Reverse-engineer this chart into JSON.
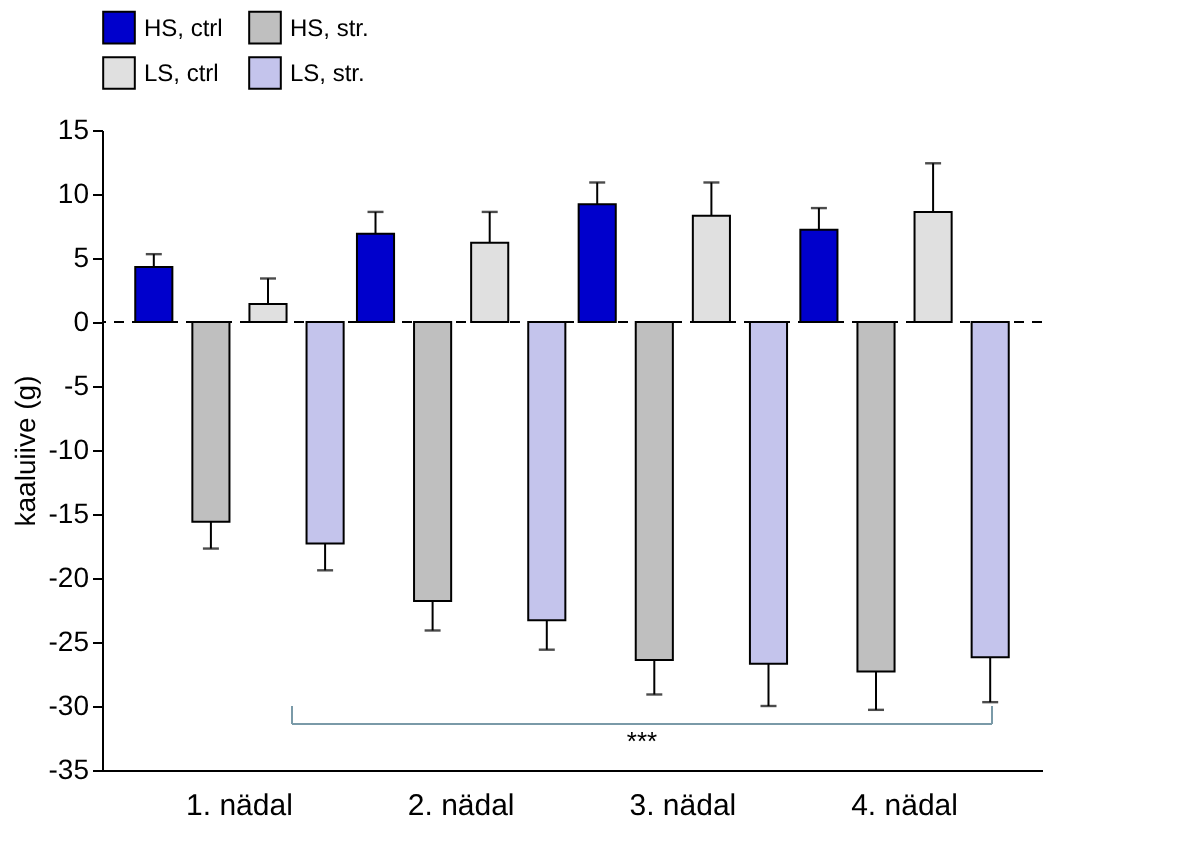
{
  "chart_data": {
    "type": "bar",
    "ylabel": "kaaluiive (g)",
    "categories": [
      "1. nädal",
      "2. nädal",
      "3. nädal",
      "4. nädal"
    ],
    "series": [
      {
        "name": "HS, ctrl",
        "color": "#0000cc",
        "values": [
          4.3,
          6.9,
          9.2,
          7.2
        ],
        "errors": [
          [
            4.3,
            5.3
          ],
          [
            6.9,
            8.6
          ],
          [
            9.2,
            10.9
          ],
          [
            7.2,
            8.9
          ]
        ]
      },
      {
        "name": "HS, str.",
        "color": "#bfbfbf",
        "values": [
          -15.6,
          -21.8,
          -26.4,
          -27.3
        ],
        "errors": [
          [
            -17.7,
            -15.6
          ],
          [
            -24.1,
            -21.8
          ],
          [
            -29.1,
            -26.4
          ],
          [
            -30.3,
            -27.3
          ]
        ]
      },
      {
        "name": "LS, ctrl",
        "color": "#e0e0e0",
        "values": [
          1.4,
          6.2,
          8.3,
          8.6
        ],
        "errors": [
          [
            1.4,
            3.4
          ],
          [
            6.2,
            8.6
          ],
          [
            8.3,
            10.9
          ],
          [
            8.6,
            12.4
          ]
        ]
      },
      {
        "name": "LS, str.",
        "color": "#c4c4ec",
        "values": [
          -17.3,
          -23.3,
          -26.7,
          -26.2
        ],
        "errors": [
          [
            -19.4,
            -17.3
          ],
          [
            -25.6,
            -23.3
          ],
          [
            -30.0,
            -26.7
          ],
          [
            -29.7,
            -26.2
          ]
        ]
      }
    ],
    "ylim": [
      -35,
      15
    ],
    "yticks": [
      15,
      10,
      5,
      0,
      -5,
      -10,
      -15,
      -20,
      -25,
      -30,
      -35
    ],
    "grid": false,
    "legend": "top left",
    "ref_lines": [
      {
        "axis": "y",
        "value": 0,
        "line_style": "dashed",
        "color": "#000000"
      }
    ],
    "annotations": [
      "***"
    ]
  }
}
